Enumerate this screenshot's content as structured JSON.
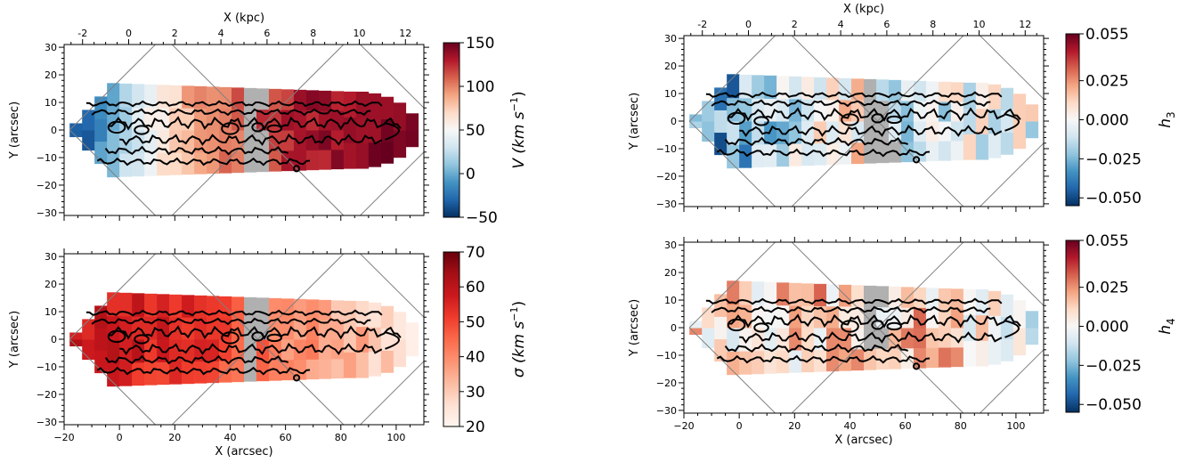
{
  "chart_data": [
    {
      "type": "heatmap",
      "panel": "top-left",
      "quantity": "V",
      "xlabel": "",
      "ylabel": "Y (arcsec)",
      "top_xlabel": "X (kpc)",
      "xlim": [
        -20,
        110
      ],
      "ylim": [
        -31,
        31
      ],
      "top_xlim_kpc": [
        -2.8,
        12.8
      ],
      "xticks": [
        -20,
        0,
        20,
        40,
        60,
        80,
        100
      ],
      "xtick_labels": [],
      "yticks": [
        -30,
        -20,
        -10,
        0,
        10,
        20,
        30
      ],
      "ytick_labels": [
        "−30",
        "−20",
        "−10",
        "0",
        "10",
        "20",
        "30"
      ],
      "top_xticks": [
        -2,
        0,
        2,
        4,
        6,
        8,
        10,
        12
      ],
      "top_xtick_labels": [
        "-2",
        "0",
        "2",
        "4",
        "6",
        "8",
        "10",
        "12"
      ],
      "colorbar": {
        "label_main": "V (km s",
        "label_sup": "−1",
        "label_end": ")",
        "range": [
          -50,
          150
        ],
        "ticks": [
          -50,
          0,
          50,
          100,
          150
        ],
        "tick_labels": [
          "−50",
          "0",
          "50",
          "100",
          "150"
        ],
        "cmap": "RdBu_r"
      },
      "values_by_x": {
        "x": [
          -15,
          -5,
          5,
          15,
          25,
          35,
          45,
          55,
          65,
          75,
          85,
          95,
          105
        ],
        "value": [
          -40,
          -5,
          30,
          60,
          85,
          100,
          110,
          120,
          130,
          135,
          140,
          145,
          148
        ]
      }
    },
    {
      "type": "heatmap",
      "panel": "bottom-left",
      "quantity": "sigma",
      "xlabel": "X (arcsec)",
      "ylabel": "Y (arcsec)",
      "xlim": [
        -20,
        110
      ],
      "ylim": [
        -31,
        31
      ],
      "xticks": [
        -20,
        0,
        20,
        40,
        60,
        80,
        100
      ],
      "xtick_labels": [
        "−20",
        "0",
        "20",
        "40",
        "60",
        "80",
        "100"
      ],
      "yticks": [
        -30,
        -20,
        -10,
        0,
        10,
        20,
        30
      ],
      "ytick_labels": [
        "−30",
        "−20",
        "−10",
        "0",
        "10",
        "20",
        "30"
      ],
      "colorbar": {
        "label_main": "σ (km s",
        "label_sup": "−1",
        "label_end": ")",
        "range": [
          20,
          70
        ],
        "ticks": [
          20,
          30,
          40,
          50,
          60,
          70
        ],
        "tick_labels": [
          "20",
          "30",
          "40",
          "50",
          "60",
          "70"
        ],
        "cmap": "Reds"
      },
      "values_by_x": {
        "x": [
          -15,
          -5,
          5,
          15,
          25,
          35,
          45,
          55,
          65,
          75,
          85,
          95,
          105
        ],
        "value": [
          58,
          60,
          58,
          56,
          55,
          52,
          48,
          44,
          40,
          37,
          34,
          30,
          26
        ]
      }
    },
    {
      "type": "heatmap",
      "panel": "top-right",
      "quantity": "h3",
      "xlabel": "",
      "ylabel": "Y (arcsec)",
      "top_xlabel": "X (kpc)",
      "xlim": [
        -20,
        110
      ],
      "ylim": [
        -31,
        31
      ],
      "top_xlim_kpc": [
        -2.8,
        12.8
      ],
      "xticks": [
        -20,
        0,
        20,
        40,
        60,
        80,
        100
      ],
      "xtick_labels": [],
      "yticks": [
        -30,
        -20,
        -10,
        0,
        10,
        20,
        30
      ],
      "ytick_labels": [
        "−30",
        "−20",
        "−10",
        "0",
        "10",
        "20",
        "30"
      ],
      "top_xticks": [
        -2,
        0,
        2,
        4,
        6,
        8,
        10,
        12
      ],
      "top_xtick_labels": [
        "-2",
        "0",
        "2",
        "4",
        "6",
        "8",
        "10",
        "12"
      ],
      "colorbar": {
        "label_main": "h",
        "label_sub": "3",
        "range": [
          -0.055,
          0.055
        ],
        "ticks": [
          -0.05,
          -0.025,
          0.0,
          0.025,
          0.055
        ],
        "tick_labels": [
          "−0.050",
          "−0.025",
          "0.000",
          "0.025",
          "0.055"
        ],
        "cmap": "RdBu_r"
      },
      "values_by_x": {
        "x": [
          -15,
          -5,
          5,
          15,
          25,
          35,
          45,
          55,
          65,
          75,
          85,
          95,
          105
        ],
        "value": [
          -0.035,
          -0.03,
          -0.02,
          -0.012,
          -0.005,
          0.0,
          0.003,
          -0.005,
          -0.01,
          -0.008,
          -0.005,
          -0.003,
          -0.002
        ]
      }
    },
    {
      "type": "heatmap",
      "panel": "bottom-right",
      "quantity": "h4",
      "xlabel": "X (arcsec)",
      "ylabel": "Y (arcsec)",
      "xlim": [
        -20,
        110
      ],
      "ylim": [
        -31,
        31
      ],
      "xticks": [
        -20,
        0,
        20,
        40,
        60,
        80,
        100
      ],
      "xtick_labels": [
        "−20",
        "0",
        "20",
        "40",
        "60",
        "80",
        "100"
      ],
      "yticks": [
        -30,
        -20,
        -10,
        0,
        10,
        20,
        30
      ],
      "ytick_labels": [
        "−30",
        "−20",
        "−10",
        "0",
        "10",
        "20",
        "30"
      ],
      "colorbar": {
        "label_main": "h",
        "label_sub": "4",
        "range": [
          -0.055,
          0.055
        ],
        "ticks": [
          -0.05,
          -0.025,
          0.0,
          0.025,
          0.055
        ],
        "tick_labels": [
          "−0.050",
          "−0.025",
          "0.000",
          "0.025",
          "0.055"
        ],
        "cmap": "RdBu_r"
      },
      "values_by_x": {
        "x": [
          -15,
          -5,
          5,
          15,
          25,
          35,
          45,
          55,
          65,
          75,
          85,
          95,
          105
        ],
        "value": [
          0.008,
          0.01,
          0.012,
          0.01,
          0.012,
          0.015,
          0.01,
          0.012,
          0.018,
          0.012,
          0.008,
          0.004,
          -0.012
        ]
      }
    }
  ]
}
